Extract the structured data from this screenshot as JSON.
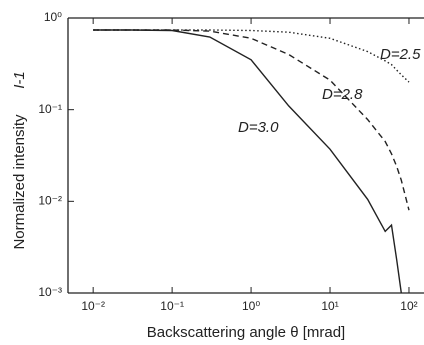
{
  "chart_data": {
    "type": "line",
    "x_label": "Backscattering angle  θ [mrad]",
    "y_label": "Normalized intensity",
    "y_label_symbol": "I-1",
    "x": [
      0.01,
      0.03,
      0.1,
      0.3,
      1,
      3,
      10,
      30,
      50,
      60,
      70,
      80,
      100
    ],
    "series": [
      {
        "name": "D=2.5",
        "color": "#222222",
        "dash": "dotted",
        "values": [
          0.74,
          0.74,
          0.74,
          0.74,
          0.73,
          0.7,
          0.6,
          0.43,
          0.34,
          0.31,
          0.27,
          0.24,
          0.2
        ]
      },
      {
        "name": "D=2.8",
        "color": "#222222",
        "dash": "dashed",
        "values": [
          0.74,
          0.74,
          0.74,
          0.72,
          0.6,
          0.4,
          0.21,
          0.078,
          0.045,
          0.033,
          0.024,
          0.017,
          0.008
        ]
      },
      {
        "name": "D=3.0",
        "color": "#222222",
        "dash": "solid",
        "values": [
          0.74,
          0.74,
          0.73,
          0.62,
          0.35,
          0.11,
          0.037,
          0.0105,
          0.0047,
          0.0055,
          0.0023,
          0.001,
          null
        ]
      }
    ],
    "xscale": "log",
    "yscale": "log",
    "xlim": [
      0.0048,
      155
    ],
    "ylim": [
      0.001,
      1
    ],
    "xticks": [
      {
        "value": 0.01,
        "label": "10⁻²"
      },
      {
        "value": 0.1,
        "label": "10⁻¹"
      },
      {
        "value": 1,
        "label": "10⁰"
      },
      {
        "value": 10,
        "label": "10¹"
      },
      {
        "value": 100,
        "label": "10²"
      }
    ],
    "yticks": [
      {
        "value": 0.001,
        "label": "10⁻³"
      },
      {
        "value": 0.01,
        "label": "10⁻²"
      },
      {
        "value": 0.1,
        "label": "10⁻¹"
      },
      {
        "value": 1,
        "label": "10⁰"
      }
    ]
  }
}
